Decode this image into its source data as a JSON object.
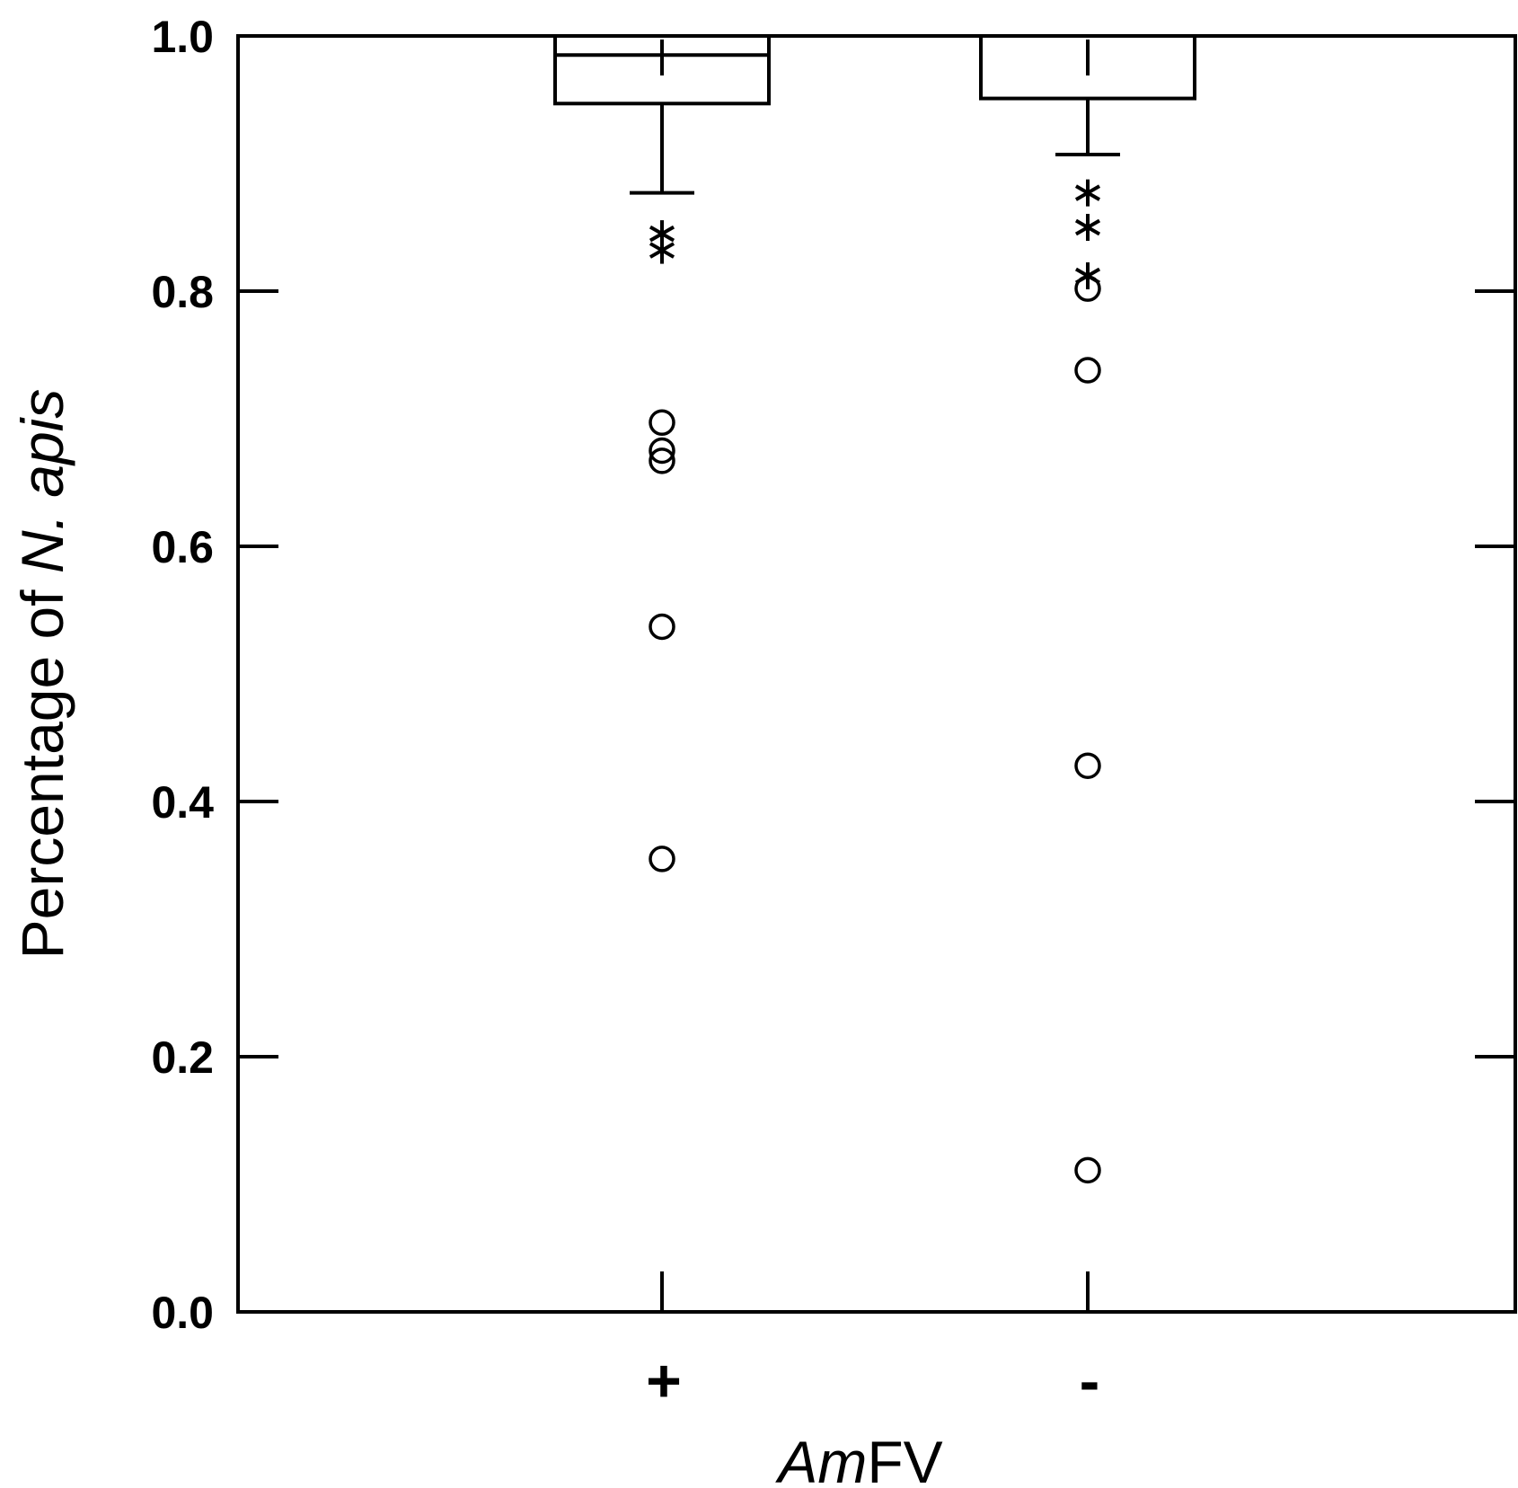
{
  "chart_data": {
    "type": "box",
    "xlabel_prefix": "Am",
    "xlabel_suffix": "FV",
    "ylabel_prefix": "Percentage of ",
    "ylabel_italic": "N. apis",
    "ylim": [
      0.0,
      1.0
    ],
    "yticks": [
      0.0,
      0.2,
      0.4,
      0.6,
      0.8,
      1.0
    ],
    "ytick_labels": [
      "0.0",
      "0.2",
      "0.4",
      "0.6",
      "0.8",
      "1.0"
    ],
    "categories": [
      "+",
      "-"
    ],
    "groups": [
      {
        "label": "+",
        "q1": 0.947,
        "median": 0.985,
        "q3": 1.0,
        "whisker_low": 0.877,
        "whisker_high": 1.0,
        "far_outliers": [
          0.845,
          0.832
        ],
        "outliers": [
          0.697,
          0.675,
          0.667,
          0.537,
          0.355
        ]
      },
      {
        "label": "-",
        "q1": 0.951,
        "median": 1.0,
        "q3": 1.0,
        "whisker_low": 0.907,
        "whisker_high": 1.0,
        "far_outliers": [
          0.877,
          0.85,
          0.812
        ],
        "outliers": [
          0.802,
          0.738,
          0.428,
          0.111
        ]
      }
    ],
    "grid": false,
    "legend": "none"
  }
}
